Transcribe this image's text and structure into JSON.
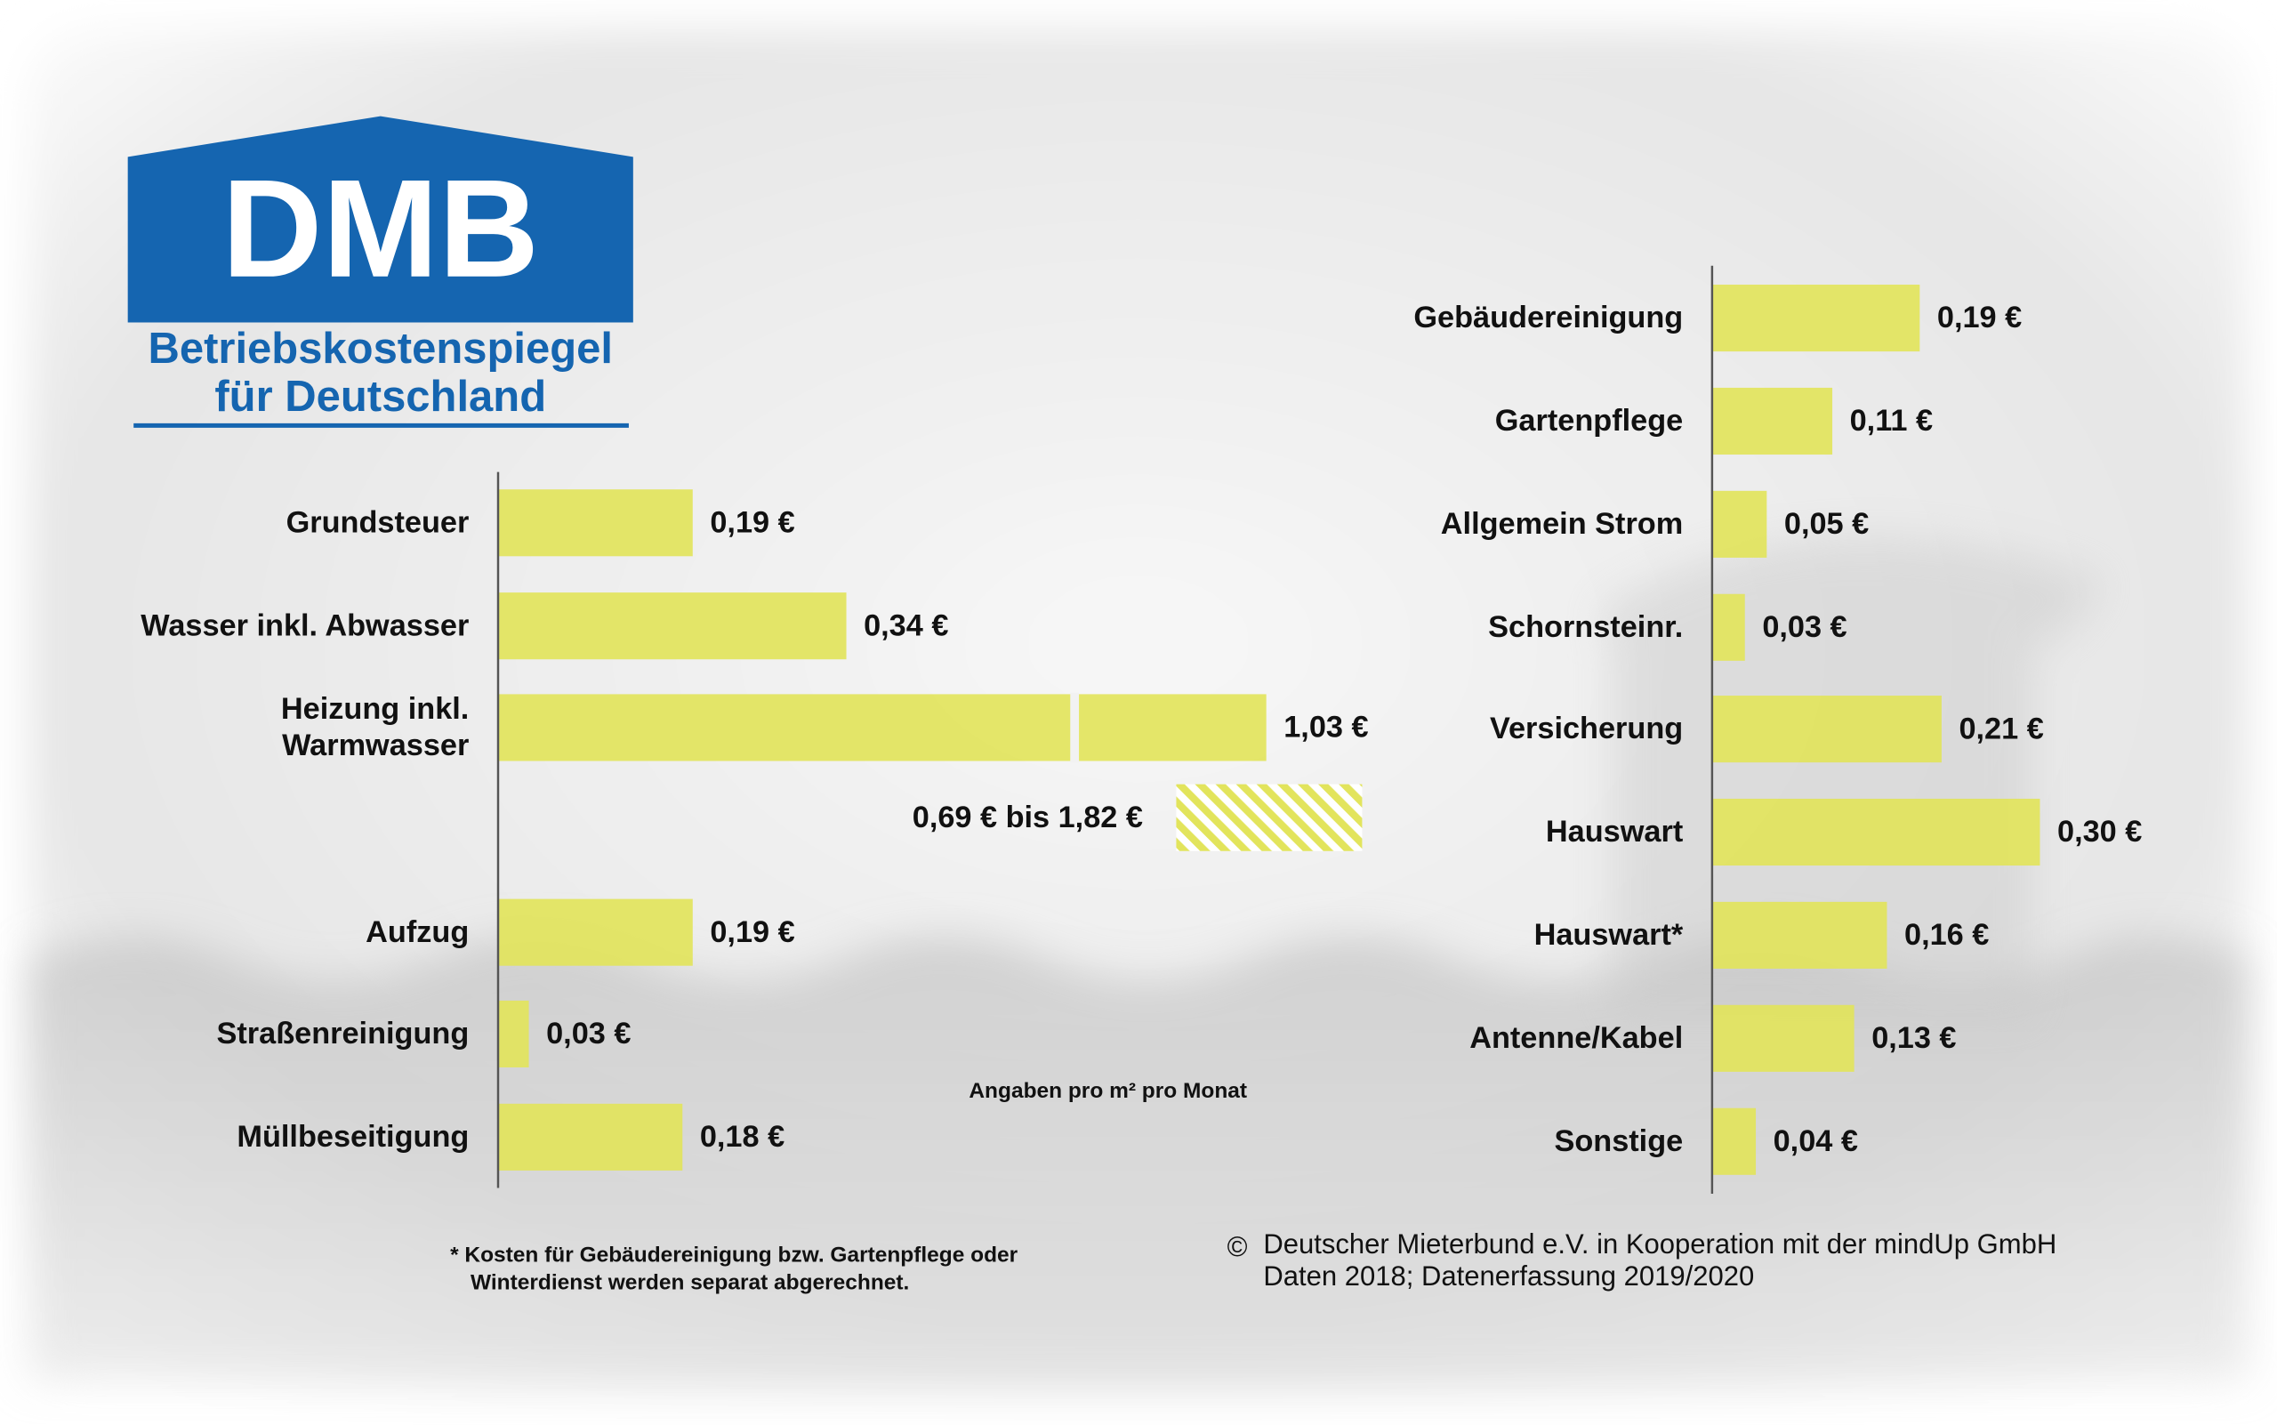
{
  "logo": {
    "brand": "DMB",
    "line1": "Betriebskostenspiegel",
    "line2": "für Deutschland"
  },
  "chart_data": [
    {
      "type": "bar",
      "orientation": "horizontal",
      "categories": [
        "Grundsteuer",
        "Wasser inkl. Abwasser",
        "Heizung inkl.\nWarmwasser",
        "Aufzug",
        "Straßenreinigung",
        "Müllbeseitigung"
      ],
      "values": [
        0.19,
        0.34,
        1.03,
        0.19,
        0.03,
        0.18
      ],
      "value_labels": [
        "0,19 €",
        "0,34 €",
        "1,03 €",
        "0,19 €",
        "0,03 €",
        "0,18 €"
      ],
      "color": "#e2e45c",
      "xlim": [
        0,
        0.75
      ],
      "annotation": "0,69 € bis 1,82 €"
    },
    {
      "type": "bar",
      "orientation": "horizontal",
      "categories": [
        "Gebäudereinigung",
        "Gartenpflege",
        "Allgemein Strom",
        "Schornsteinr.",
        "Versicherung",
        "Hauswart",
        "Hauswart*",
        "Antenne/Kabel",
        "Sonstige"
      ],
      "values": [
        0.19,
        0.11,
        0.05,
        0.03,
        0.21,
        0.3,
        0.16,
        0.13,
        0.04
      ],
      "value_labels": [
        "0,19 €",
        "0,11 €",
        "0,05 €",
        "0,03 €",
        "0,21 €",
        "0,30 €",
        "0,16 €",
        "0,13 €",
        "0,04 €"
      ],
      "color": "#e2e45c",
      "xlim": [
        0,
        0.4
      ]
    }
  ],
  "unit_note": "Angaben pro m² pro Monat",
  "footnote": [
    "* Kosten für Gebäudereinigung bzw. Gartenpflege oder",
    "Winterdienst werden separat abgerechnet."
  ],
  "copyright": {
    "symbol": "©",
    "lines": [
      "Deutscher Mieterbund e.V. in Kooperation mit der mindUp GmbH",
      "Daten 2018; Datenerfassung 2019/2020"
    ]
  }
}
